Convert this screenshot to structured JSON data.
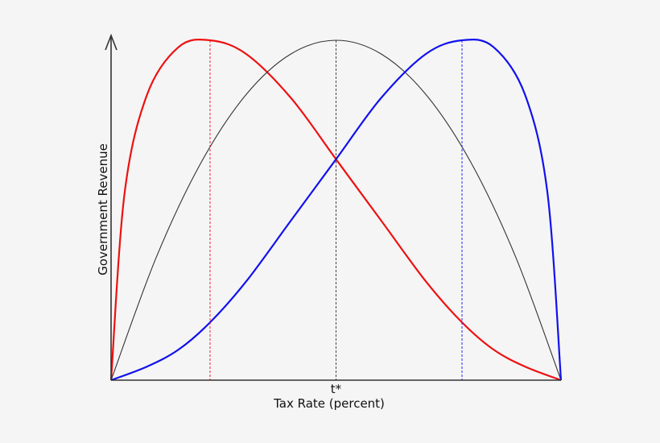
{
  "chart_data": {
    "type": "line",
    "xlabel": "Tax Rate (percent)",
    "ylabel": "Government Revenue",
    "xlim": [
      0,
      1
    ],
    "ylim": [
      0,
      1
    ],
    "grid": false,
    "x_tick_labels": [
      {
        "x": 0.5,
        "label": "t*"
      }
    ],
    "series": [
      {
        "color": "#ee1111",
        "peak_x": 0.22,
        "points": [
          [
            0,
            0
          ],
          [
            0.03,
            0.55
          ],
          [
            0.08,
            0.84
          ],
          [
            0.15,
            0.98
          ],
          [
            0.22,
            1.0
          ],
          [
            0.3,
            0.96
          ],
          [
            0.4,
            0.83
          ],
          [
            0.5,
            0.65
          ],
          [
            0.6,
            0.47
          ],
          [
            0.7,
            0.29
          ],
          [
            0.78,
            0.17
          ],
          [
            0.85,
            0.09
          ],
          [
            0.92,
            0.04
          ],
          [
            1.0,
            0
          ]
        ]
      },
      {
        "color": "#333333",
        "peak_x": 0.5,
        "points": [
          [
            0,
            0
          ],
          [
            0.1,
            0.36
          ],
          [
            0.2,
            0.64
          ],
          [
            0.3,
            0.84
          ],
          [
            0.4,
            0.96
          ],
          [
            0.5,
            1.0
          ],
          [
            0.6,
            0.96
          ],
          [
            0.7,
            0.84
          ],
          [
            0.8,
            0.64
          ],
          [
            0.9,
            0.36
          ],
          [
            1.0,
            0
          ]
        ]
      },
      {
        "color": "#1111ee",
        "peak_x": 0.78,
        "points": [
          [
            0,
            0
          ],
          [
            0.08,
            0.04
          ],
          [
            0.15,
            0.09
          ],
          [
            0.22,
            0.17
          ],
          [
            0.3,
            0.29
          ],
          [
            0.4,
            0.47
          ],
          [
            0.5,
            0.65
          ],
          [
            0.6,
            0.83
          ],
          [
            0.7,
            0.96
          ],
          [
            0.78,
            1.0
          ],
          [
            0.85,
            0.98
          ],
          [
            0.92,
            0.84
          ],
          [
            0.97,
            0.55
          ],
          [
            1.0,
            0
          ]
        ]
      }
    ]
  }
}
